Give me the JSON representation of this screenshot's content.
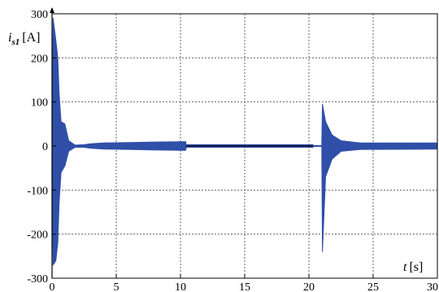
{
  "chart_data": {
    "type": "line",
    "xlabel": "t [s]",
    "ylabel": "i_s1 [A]",
    "ylabel_main": "i",
    "ylabel_sub": "s1",
    "ylabel_unit": "[A]",
    "xlabel_main": "t",
    "xlabel_unit": "[s]",
    "xlim": [
      0,
      30
    ],
    "ylim": [
      -300,
      300
    ],
    "x_ticks": [
      "0",
      "5",
      "10",
      "15",
      "20",
      "25",
      "30"
    ],
    "y_ticks": [
      "300",
      "200",
      "100",
      "0",
      "-100",
      "-200",
      "-300"
    ],
    "grid": true,
    "series": [
      {
        "color": "#2f4fa8",
        "envelope": [
          {
            "x": 0.0,
            "upper": 0,
            "lower": 0
          },
          {
            "x": 0.08,
            "upper": 290,
            "lower": -270
          },
          {
            "x": 0.3,
            "upper": 240,
            "lower": -260
          },
          {
            "x": 0.45,
            "upper": 200,
            "lower": -220
          },
          {
            "x": 0.55,
            "upper": 120,
            "lower": -130
          },
          {
            "x": 0.7,
            "upper": 55,
            "lower": -60
          },
          {
            "x": 1.0,
            "upper": 50,
            "lower": -45
          },
          {
            "x": 1.3,
            "upper": 12,
            "lower": -12
          },
          {
            "x": 1.8,
            "upper": 2,
            "lower": -3
          },
          {
            "x": 2.5,
            "upper": 3,
            "lower": -3
          },
          {
            "x": 3.0,
            "upper": 5,
            "lower": -5
          },
          {
            "x": 4.0,
            "upper": 7,
            "lower": -7
          },
          {
            "x": 6.0,
            "upper": 8,
            "lower": -8
          },
          {
            "x": 8.0,
            "upper": 9,
            "lower": -9
          },
          {
            "x": 10.4,
            "upper": 10,
            "lower": -10
          },
          {
            "x": 10.45,
            "upper": 3,
            "lower": -3
          },
          {
            "x": 20.3,
            "upper": 3,
            "lower": -3
          },
          {
            "x": 20.4,
            "upper": 1,
            "lower": -1
          },
          {
            "x": 21.0,
            "upper": 1,
            "lower": -1
          },
          {
            "x": 21.05,
            "upper": 95,
            "lower": -240
          },
          {
            "x": 21.3,
            "upper": 55,
            "lower": -70
          },
          {
            "x": 21.8,
            "upper": 25,
            "lower": -30
          },
          {
            "x": 22.5,
            "upper": 12,
            "lower": -12
          },
          {
            "x": 24.0,
            "upper": 7,
            "lower": -8
          },
          {
            "x": 30.0,
            "upper": 7,
            "lower": -7
          }
        ]
      }
    ]
  }
}
